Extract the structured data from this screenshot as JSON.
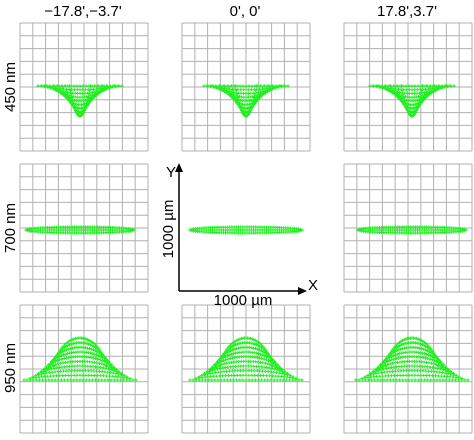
{
  "columns": [
    "−17.8',−3.7'",
    "0', 0'",
    "17.8',3.7'"
  ],
  "rows": [
    "450 nm",
    "700 nm",
    "950 nm"
  ],
  "axes": {
    "y": "Y",
    "x": "X",
    "y_scale": "1000 µm",
    "x_scale": "1000 µm"
  }
}
